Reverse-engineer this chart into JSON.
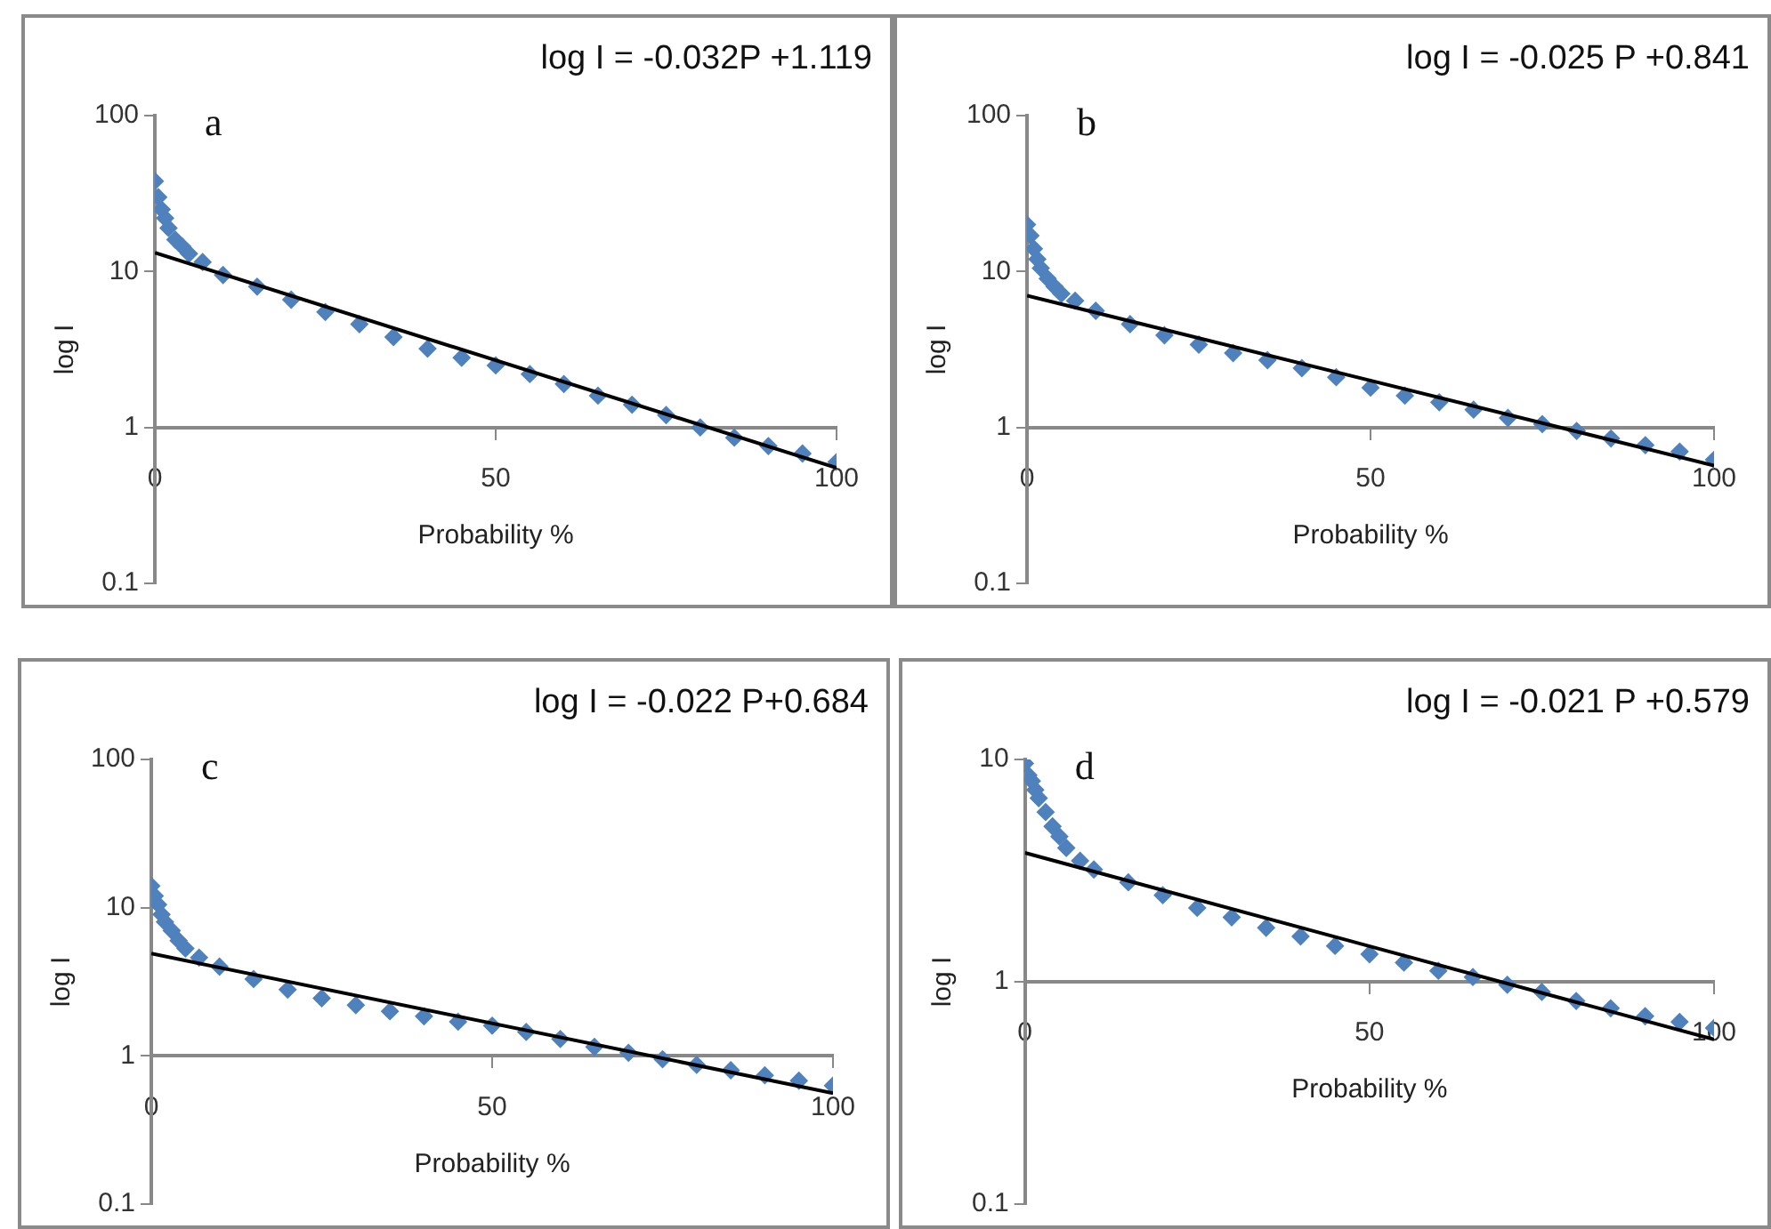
{
  "chart_data": [
    {
      "type": "scatter",
      "title": "a",
      "xlabel": "Probability %",
      "ylabel": "log I",
      "annotations": [
        "log I = -0.032P +1.119"
      ],
      "log": "y",
      "xlim": [
        0,
        100
      ],
      "xticks": [
        0,
        50,
        100
      ],
      "ylim": [
        0.1,
        100
      ],
      "yticks": [
        0.1,
        1,
        10,
        100
      ],
      "marker": "diamond",
      "legend": false,
      "grid": false,
      "series": [
        {
          "type": "scatter",
          "color": "#4f81bd",
          "x": [
            0,
            0.5,
            1,
            1.5,
            2,
            3,
            4,
            5,
            7,
            10,
            15,
            20,
            25,
            30,
            35,
            40,
            45,
            50,
            55,
            60,
            65,
            70,
            75,
            80,
            85,
            90,
            95,
            100
          ],
          "values": [
            38,
            30,
            25,
            22,
            19,
            16,
            14.5,
            13,
            11.5,
            9.5,
            8,
            6.6,
            5.5,
            4.6,
            3.8,
            3.2,
            2.8,
            2.5,
            2.2,
            1.9,
            1.6,
            1.4,
            1.2,
            1.0,
            0.86,
            0.76,
            0.68,
            0.6
          ]
        },
        {
          "type": "line",
          "color": "#000000",
          "marker": "none",
          "x": [
            0,
            100
          ],
          "values": [
            13.2,
            0.55
          ]
        }
      ]
    },
    {
      "type": "scatter",
      "title": "b",
      "xlabel": "Probability %",
      "ylabel": "log I",
      "annotations": [
        "log I = -0.025 P +0.841"
      ],
      "log": "y",
      "xlim": [
        0,
        100
      ],
      "xticks": [
        0,
        50,
        100
      ],
      "ylim": [
        0.1,
        100
      ],
      "yticks": [
        0.1,
        1,
        10,
        100
      ],
      "marker": "diamond",
      "legend": false,
      "grid": false,
      "series": [
        {
          "type": "scatter",
          "color": "#4f81bd",
          "x": [
            0,
            0.5,
            1,
            1.5,
            2,
            3,
            4,
            5,
            7,
            10,
            15,
            20,
            25,
            30,
            35,
            40,
            45,
            50,
            55,
            60,
            65,
            70,
            75,
            80,
            85,
            90,
            95,
            100
          ],
          "values": [
            20,
            17,
            14,
            12,
            10.5,
            9,
            8,
            7.2,
            6.5,
            5.6,
            4.6,
            3.9,
            3.4,
            3.0,
            2.7,
            2.4,
            2.1,
            1.8,
            1.6,
            1.45,
            1.3,
            1.15,
            1.05,
            0.95,
            0.85,
            0.77,
            0.7,
            0.62
          ]
        },
        {
          "type": "line",
          "color": "#000000",
          "marker": "none",
          "x": [
            0,
            100
          ],
          "values": [
            7.0,
            0.57
          ]
        }
      ]
    },
    {
      "type": "scatter",
      "title": "c",
      "xlabel": "Probability %",
      "ylabel": "log I",
      "annotations": [
        "log I = -0.022 P+0.684"
      ],
      "log": "y",
      "xlim": [
        0,
        100
      ],
      "xticks": [
        0,
        50,
        100
      ],
      "ylim": [
        0.1,
        100
      ],
      "yticks": [
        0.1,
        1,
        10,
        100
      ],
      "marker": "diamond",
      "legend": false,
      "grid": false,
      "series": [
        {
          "type": "scatter",
          "color": "#4f81bd",
          "x": [
            0,
            0.5,
            1,
            1.5,
            2,
            3,
            4,
            5,
            7,
            10,
            15,
            20,
            25,
            30,
            35,
            40,
            45,
            50,
            55,
            60,
            65,
            70,
            75,
            80,
            85,
            90,
            95,
            100
          ],
          "values": [
            14,
            12,
            10.5,
            9,
            8,
            7,
            6,
            5.3,
            4.6,
            4.0,
            3.3,
            2.8,
            2.45,
            2.2,
            2.0,
            1.85,
            1.7,
            1.6,
            1.45,
            1.3,
            1.15,
            1.05,
            0.95,
            0.87,
            0.8,
            0.74,
            0.68,
            0.63
          ]
        },
        {
          "type": "line",
          "color": "#000000",
          "marker": "none",
          "x": [
            0,
            100
          ],
          "values": [
            4.9,
            0.56
          ]
        }
      ]
    },
    {
      "type": "scatter",
      "title": "d",
      "xlabel": "Probability %",
      "ylabel": "log I",
      "annotations": [
        "log I = -0.021 P +0.579"
      ],
      "log": "y",
      "xlim": [
        0,
        100
      ],
      "xticks": [
        0,
        50,
        100
      ],
      "ylim": [
        0.1,
        10
      ],
      "yticks": [
        0.1,
        1,
        10
      ],
      "marker": "diamond",
      "legend": false,
      "grid": false,
      "series": [
        {
          "type": "scatter",
          "color": "#4f81bd",
          "x": [
            0,
            0.5,
            1,
            1.5,
            2,
            3,
            4,
            5,
            6,
            8,
            10,
            15,
            20,
            25,
            30,
            35,
            40,
            45,
            50,
            55,
            60,
            65,
            70,
            75,
            80,
            85,
            90,
            95,
            100
          ],
          "values": [
            9.6,
            8.5,
            8,
            7.3,
            6.7,
            5.8,
            5,
            4.5,
            4,
            3.5,
            3.2,
            2.8,
            2.45,
            2.15,
            1.95,
            1.75,
            1.6,
            1.45,
            1.33,
            1.22,
            1.12,
            1.05,
            0.97,
            0.9,
            0.82,
            0.76,
            0.7,
            0.66,
            0.62
          ]
        },
        {
          "type": "line",
          "color": "#000000",
          "marker": "none",
          "x": [
            0,
            100
          ],
          "values": [
            3.8,
            0.55
          ]
        }
      ]
    }
  ]
}
